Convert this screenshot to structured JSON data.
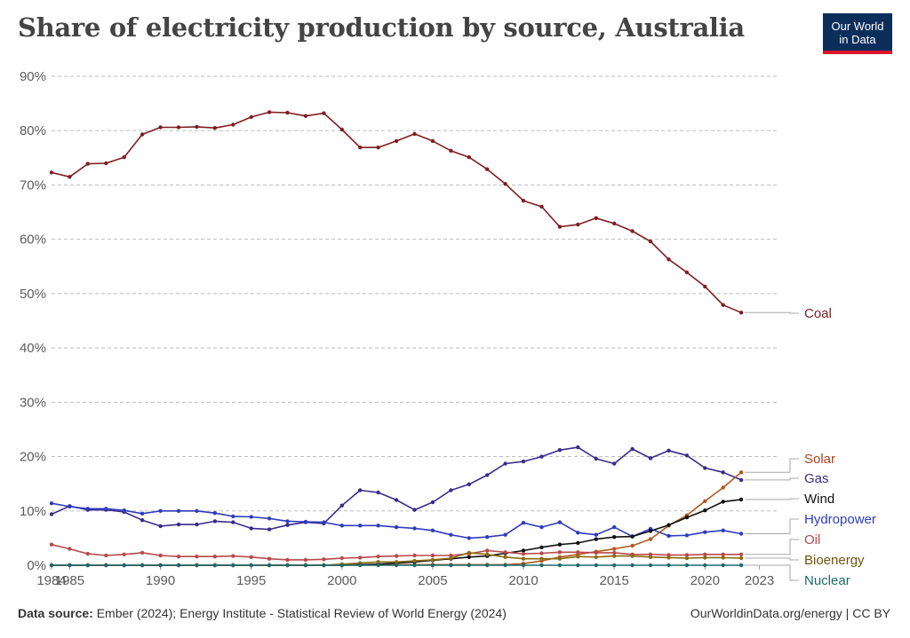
{
  "header": {
    "title": "Share of electricity production by source, Australia",
    "logo_line1": "Our World",
    "logo_line2": "in Data"
  },
  "footer": {
    "source_label": "Data source:",
    "source_text": "Ember (2024); Energy Institute - Statistical Review of World Energy (2024)",
    "site": "OurWorldinData.org/energy | CC BY"
  },
  "chart_data": {
    "type": "line",
    "title": "Share of electricity production by source, Australia",
    "xlim": [
      1984,
      2024
    ],
    "ylim": [
      0,
      90
    ],
    "yticks": [
      0,
      10,
      20,
      30,
      40,
      50,
      60,
      70,
      80,
      90
    ],
    "ytick_labels": [
      "0%",
      "10%",
      "20%",
      "30%",
      "40%",
      "50%",
      "60%",
      "70%",
      "80%",
      "90%"
    ],
    "xticks": [
      1985,
      1990,
      1995,
      2000,
      2005,
      2010,
      2015,
      2020,
      2023
    ],
    "xtick_labels": [
      "1985",
      "1990",
      "1995",
      "2000",
      "2005",
      "2010",
      "2015",
      "2020",
      "2023"
    ],
    "first_tick_label": "1984",
    "grid": true,
    "legend": "right, labels at line ends",
    "series": [
      {
        "name": "Coal",
        "color": "#7f1d22",
        "label_color": "#7f1d22",
        "start": 1984,
        "values": [
          72.3,
          71.5,
          73.9,
          74.0,
          75.1,
          79.3,
          80.6,
          80.6,
          80.7,
          80.5,
          81.1,
          82.5,
          83.4,
          83.3,
          82.7,
          83.2,
          80.2,
          76.9,
          76.9,
          78.1,
          79.4,
          78.1,
          76.3,
          75.1,
          72.9,
          70.2,
          67.1,
          66.0,
          62.3,
          62.7,
          63.9,
          62.9,
          61.5,
          59.6,
          56.3,
          53.9,
          51.3,
          47.9,
          46.5
        ]
      },
      {
        "name": "Gas",
        "color": "#3a2a8c",
        "label_color": "#3a2a8c",
        "start": 1984,
        "values": [
          9.4,
          10.9,
          10.2,
          10.2,
          9.8,
          8.3,
          7.2,
          7.5,
          7.5,
          8.1,
          7.9,
          6.8,
          6.6,
          7.4,
          7.9,
          7.7,
          11.0,
          13.8,
          13.4,
          12.0,
          10.2,
          11.6,
          13.8,
          14.9,
          16.6,
          18.7,
          19.1,
          20.0,
          21.2,
          21.7,
          19.6,
          18.7,
          21.4,
          19.7,
          21.1,
          20.2,
          17.9,
          17.1,
          15.7
        ]
      },
      {
        "name": "Hydropower",
        "color": "#2f3bbd",
        "label_color": "#2f3bbd",
        "start": 1984,
        "values": [
          11.4,
          10.8,
          10.4,
          10.4,
          10.1,
          9.5,
          10.0,
          10.0,
          10.0,
          9.6,
          9.0,
          8.9,
          8.6,
          8.1,
          8.0,
          7.9,
          7.3,
          7.3,
          7.3,
          7.0,
          6.8,
          6.4,
          5.6,
          5.0,
          5.2,
          5.6,
          7.8,
          7.0,
          7.9,
          6.0,
          5.6,
          7.0,
          5.3,
          6.7,
          5.4,
          5.5,
          6.1,
          6.4,
          5.8
        ]
      },
      {
        "name": "Solar",
        "color": "#b05a1e",
        "label_color": "#a8421c",
        "start": 1984,
        "values": [
          0,
          0,
          0,
          0,
          0,
          0,
          0,
          0,
          0,
          0,
          0,
          0,
          0,
          0,
          0,
          0,
          0,
          0.1,
          0.1,
          0.1,
          0.1,
          0.1,
          0.1,
          0.1,
          0.1,
          0.1,
          0.3,
          0.8,
          1.5,
          2.0,
          2.5,
          3.0,
          3.6,
          4.8,
          7.3,
          9.2,
          11.8,
          14.3,
          17.1
        ]
      },
      {
        "name": "Wind",
        "color": "#111111",
        "label_color": "#111111",
        "start": 1984,
        "values": [
          0,
          0,
          0,
          0,
          0,
          0,
          0,
          0,
          0,
          0,
          0,
          0,
          0,
          0,
          0,
          0,
          0,
          0.1,
          0.2,
          0.4,
          0.6,
          0.9,
          1.2,
          1.5,
          1.7,
          2.2,
          2.7,
          3.3,
          3.8,
          4.1,
          4.8,
          5.2,
          5.3,
          6.3,
          7.4,
          8.8,
          10.1,
          11.7,
          12.1
        ]
      },
      {
        "name": "Oil",
        "color": "#b8494b",
        "label_color": "#b8494b",
        "start": 1984,
        "values": [
          3.8,
          3.0,
          2.1,
          1.8,
          2.0,
          2.3,
          1.8,
          1.6,
          1.6,
          1.6,
          1.7,
          1.5,
          1.2,
          1.0,
          1.0,
          1.1,
          1.3,
          1.4,
          1.6,
          1.7,
          1.8,
          1.8,
          1.8,
          2.1,
          2.7,
          2.4,
          2.1,
          2.2,
          2.4,
          2.4,
          2.3,
          2.3,
          2.0,
          2.0,
          1.9,
          1.9,
          2.0,
          2.0,
          2.0
        ]
      },
      {
        "name": "Bioenergy",
        "color": "#8b6a12",
        "label_color": "#6b5410",
        "start": 1984,
        "values": [
          0,
          0,
          0,
          0,
          0,
          0,
          0,
          0,
          0,
          0,
          0,
          0,
          0,
          0,
          0,
          0,
          0.2,
          0.4,
          0.6,
          0.6,
          0.8,
          1.0,
          1.3,
          2.3,
          2.0,
          1.5,
          1.2,
          1.2,
          1.2,
          1.6,
          1.5,
          1.7,
          1.7,
          1.5,
          1.4,
          1.3,
          1.4,
          1.4,
          1.3
        ]
      },
      {
        "name": "Nuclear",
        "color": "#1d6b6b",
        "label_color": "#1d6b6b",
        "start": 1984,
        "values": [
          0,
          0,
          0,
          0,
          0,
          0,
          0,
          0,
          0,
          0,
          0,
          0,
          0,
          0,
          0,
          0,
          0,
          0,
          0,
          0,
          0,
          0,
          0,
          0,
          0,
          0,
          0,
          0,
          0,
          0,
          0,
          0,
          0,
          0,
          0,
          0,
          0,
          0,
          0
        ]
      }
    ]
  }
}
